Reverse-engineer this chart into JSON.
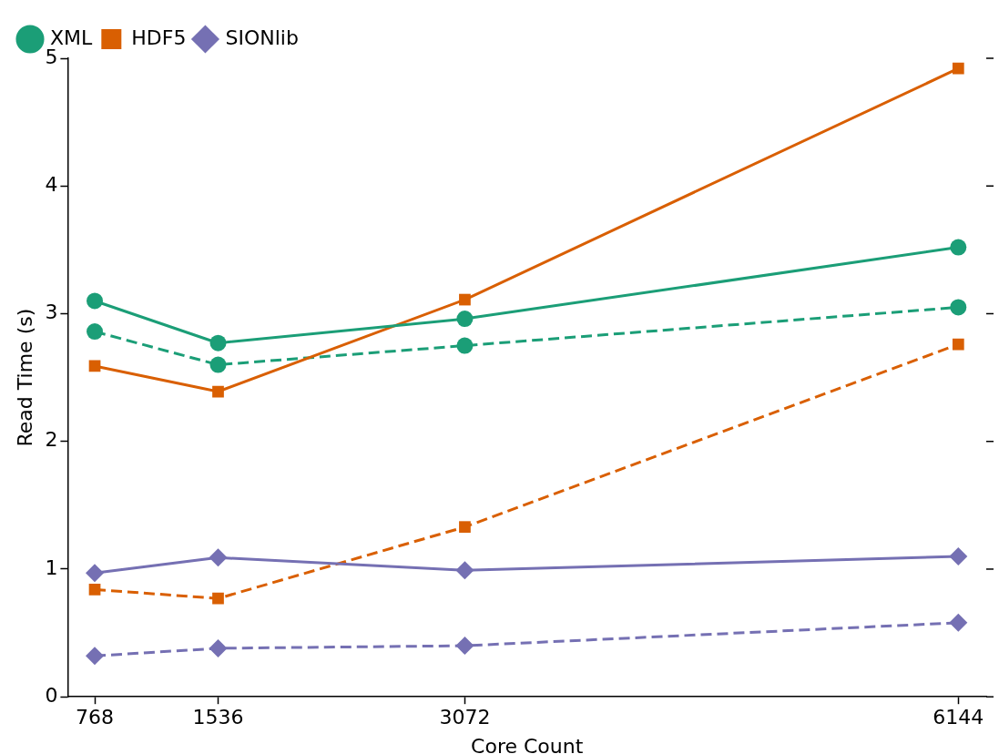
{
  "chart_data": {
    "type": "line",
    "xlabel": "Core Count",
    "ylabel": "Read Time (s)",
    "x": [
      768,
      1536,
      3072,
      6144
    ],
    "xlim": [
      600,
      6318
    ],
    "xticks": [
      768,
      1536,
      3072,
      6144
    ],
    "ylim": [
      0,
      5
    ],
    "yticks": [
      0,
      1,
      2,
      3,
      4,
      5
    ],
    "legend": "top left",
    "grid": false,
    "series": [
      {
        "name": "XML",
        "color": "#1b9e77",
        "marker": "circle",
        "line_style": "solid",
        "values": [
          3.1,
          2.77,
          2.96,
          3.52
        ]
      },
      {
        "name": "HDF5",
        "color": "#d95f02",
        "marker": "square",
        "line_style": "solid",
        "values": [
          2.59,
          2.39,
          3.11,
          4.92
        ]
      },
      {
        "name": "SIONlib",
        "color": "#7570b3",
        "marker": "diamond",
        "line_style": "solid",
        "values": [
          0.97,
          1.09,
          0.99,
          1.1
        ]
      },
      {
        "color": "#1b9e77",
        "marker": "circle",
        "line_style": "dashed",
        "values": [
          2.86,
          2.6,
          2.75,
          3.05
        ]
      },
      {
        "color": "#d95f02",
        "marker": "square",
        "line_style": "dashed",
        "values": [
          0.84,
          0.77,
          1.33,
          2.76
        ]
      },
      {
        "color": "#7570b3",
        "marker": "diamond",
        "line_style": "dashed",
        "values": [
          0.32,
          0.38,
          0.4,
          0.58
        ]
      }
    ]
  }
}
